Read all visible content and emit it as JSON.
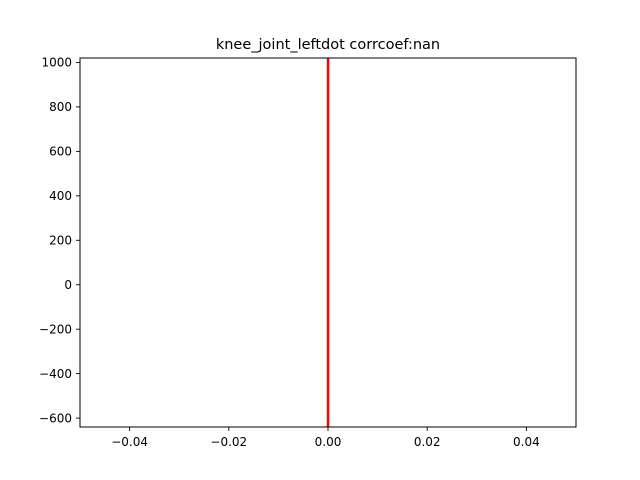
{
  "chart_data": {
    "type": "line",
    "title": "knee_joint_leftdot corrcoef:nan",
    "xlabel": "",
    "ylabel": "",
    "xlim": [
      -0.05,
      0.05
    ],
    "ylim": [
      -640,
      1020
    ],
    "x_ticks": [
      -0.04,
      -0.02,
      0.0,
      0.02,
      0.04
    ],
    "x_tick_labels": [
      "−0.04",
      "−0.02",
      "0.00",
      "0.02",
      "0.04"
    ],
    "y_ticks": [
      -600,
      -400,
      -200,
      0,
      200,
      400,
      600,
      800,
      1000
    ],
    "y_tick_labels": [
      "−600",
      "−400",
      "−200",
      "0",
      "200",
      "400",
      "600",
      "800",
      "1000"
    ],
    "grid": false,
    "series": [
      {
        "color": "#ff0000",
        "x": [
          0,
          0
        ],
        "y": [
          -640,
          1020
        ]
      }
    ]
  }
}
